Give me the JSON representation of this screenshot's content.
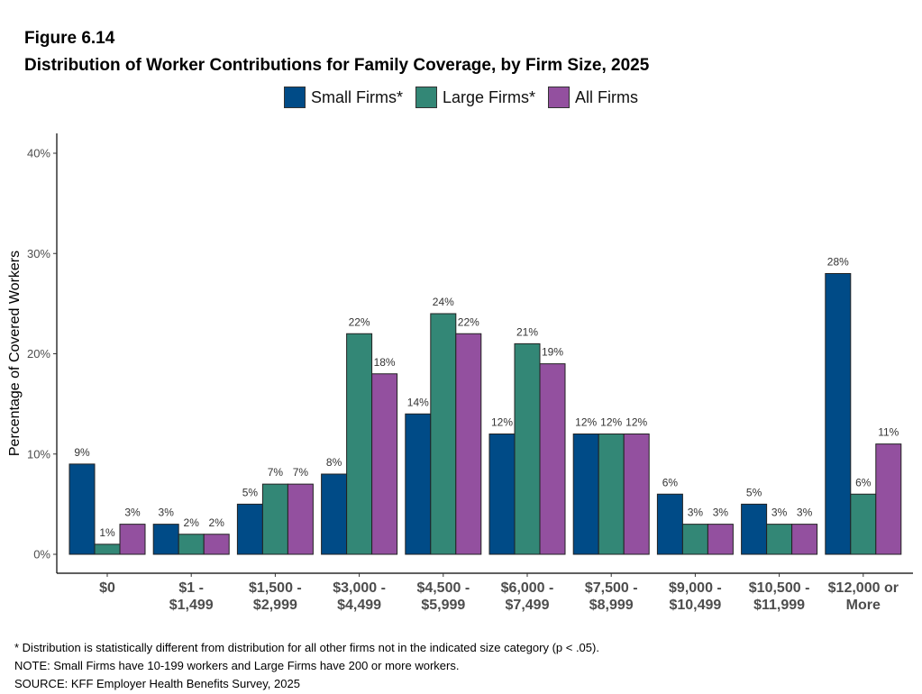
{
  "figure_label": "Figure 6.14",
  "title": "Distribution of Worker Contributions for Family Coverage, by Firm Size, 2025",
  "footnotes": [
    "* Distribution is statistically different from distribution for all other firms not in the indicated size category (p < .05).",
    "NOTE: Small Firms have 10-199 workers and Large Firms have 200 or more workers.",
    "SOURCE: KFF Employer Health Benefits Survey, 2025"
  ],
  "chart_data": {
    "type": "bar",
    "ylabel": "Percentage of Covered Workers",
    "ylim": [
      0,
      40
    ],
    "yticks": [
      0,
      10,
      20,
      30,
      40
    ],
    "ytick_labels": [
      "0%",
      "10%",
      "20%",
      "30%",
      "40%"
    ],
    "grid": false,
    "legend_position": "top",
    "categories": [
      [
        "$0"
      ],
      [
        "$1 -",
        "$1,499"
      ],
      [
        "$1,500 -",
        "$2,999"
      ],
      [
        "$3,000 -",
        "$4,499"
      ],
      [
        "$4,500 -",
        "$5,999"
      ],
      [
        "$6,000 -",
        "$7,499"
      ],
      [
        "$7,500 -",
        "$8,999"
      ],
      [
        "$9,000 -",
        "$10,499"
      ],
      [
        "$10,500 -",
        "$11,999"
      ],
      [
        "$12,000 or",
        "More"
      ]
    ],
    "series": [
      {
        "name": "Small Firms*",
        "color": "#004b87",
        "values": [
          9,
          3,
          5,
          8,
          14,
          12,
          12,
          6,
          5,
          28
        ],
        "labels": [
          "9%",
          "3%",
          "5%",
          "8%",
          "14%",
          "12%",
          "12%",
          "6%",
          "5%",
          "28%"
        ]
      },
      {
        "name": "Large Firms*",
        "color": "#338776",
        "values": [
          1,
          2,
          7,
          22,
          24,
          21,
          12,
          3,
          3,
          6
        ],
        "labels": [
          "1%",
          "2%",
          "7%",
          "22%",
          "24%",
          "21%",
          "12%",
          "3%",
          "3%",
          "6%"
        ]
      },
      {
        "name": "All Firms",
        "color": "#93509f",
        "values": [
          3,
          2,
          7,
          18,
          22,
          19,
          12,
          3,
          3,
          11
        ],
        "labels": [
          "3%",
          "2%",
          "7%",
          "18%",
          "22%",
          "19%",
          "12%",
          "3%",
          "3%",
          "11%"
        ]
      }
    ]
  }
}
